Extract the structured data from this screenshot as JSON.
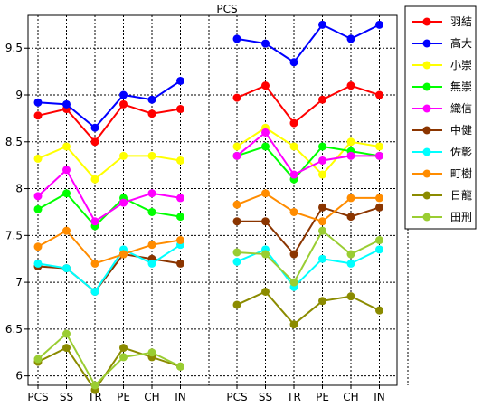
{
  "chart_data": {
    "type": "line",
    "title": "PCS",
    "categories": [
      "PCS",
      "SS",
      "TR",
      "PE",
      "CH",
      "IN"
    ],
    "groups": 2,
    "ylim": [
      5.9,
      9.85
    ],
    "yticks": [
      6,
      6.5,
      7,
      7.5,
      8,
      8.5,
      9,
      9.5
    ],
    "ytick_labels": [
      "6",
      "6.5",
      "7",
      "7.5",
      "8",
      "8.5",
      "9",
      "9.5"
    ],
    "grid": true,
    "legend_position": "right",
    "series": [
      {
        "name": "羽結",
        "color": "#ff0000",
        "values": [
          [
            8.78,
            8.85,
            8.5,
            8.9,
            8.8,
            8.85
          ],
          [
            8.97,
            9.1,
            8.7,
            8.95,
            9.1,
            9.0
          ]
        ]
      },
      {
        "name": "高大",
        "color": "#0000ff",
        "values": [
          [
            8.92,
            8.9,
            8.65,
            9.0,
            8.95,
            9.15
          ],
          [
            9.6,
            9.55,
            9.35,
            9.75,
            9.6,
            9.75
          ]
        ]
      },
      {
        "name": "小崇",
        "color": "#ffff00",
        "values": [
          [
            8.32,
            8.45,
            8.1,
            8.35,
            8.35,
            8.3
          ],
          [
            8.45,
            8.65,
            8.45,
            8.15,
            8.5,
            8.45
          ]
        ]
      },
      {
        "name": "無崇",
        "color": "#00ff00",
        "values": [
          [
            7.78,
            7.95,
            7.6,
            7.9,
            7.75,
            7.7
          ],
          [
            8.35,
            8.45,
            8.1,
            8.45,
            8.4,
            8.35
          ]
        ]
      },
      {
        "name": "織信",
        "color": "#ff00ff",
        "values": [
          [
            7.92,
            8.2,
            7.65,
            7.85,
            7.95,
            7.9
          ],
          [
            8.35,
            8.6,
            8.15,
            8.3,
            8.35,
            8.35
          ]
        ]
      },
      {
        "name": "中健",
        "color": "#8b3500",
        "values": [
          [
            7.17,
            7.15,
            6.9,
            7.3,
            7.25,
            7.2
          ],
          [
            7.65,
            7.65,
            7.3,
            7.8,
            7.7,
            7.8
          ]
        ]
      },
      {
        "name": "佐彰",
        "color": "#00ffff",
        "values": [
          [
            7.2,
            7.15,
            6.9,
            7.35,
            7.2,
            7.4
          ],
          [
            7.22,
            7.35,
            6.95,
            7.25,
            7.2,
            7.35
          ]
        ]
      },
      {
        "name": "町樹",
        "color": "#ff8c00",
        "values": [
          [
            7.38,
            7.55,
            7.2,
            7.3,
            7.4,
            7.45
          ],
          [
            7.83,
            7.95,
            7.75,
            7.65,
            7.9,
            7.9
          ]
        ]
      },
      {
        "name": "日龍",
        "color": "#8b8b00",
        "values": [
          [
            6.15,
            6.3,
            5.85,
            6.3,
            6.2,
            6.1
          ],
          [
            6.76,
            6.9,
            6.55,
            6.8,
            6.85,
            6.7
          ]
        ]
      },
      {
        "name": "田刑",
        "color": "#9acd32",
        "values": [
          [
            6.18,
            6.45,
            5.9,
            6.2,
            6.25,
            6.1
          ],
          [
            7.32,
            7.3,
            7.0,
            7.55,
            7.3,
            7.45
          ]
        ]
      }
    ]
  }
}
